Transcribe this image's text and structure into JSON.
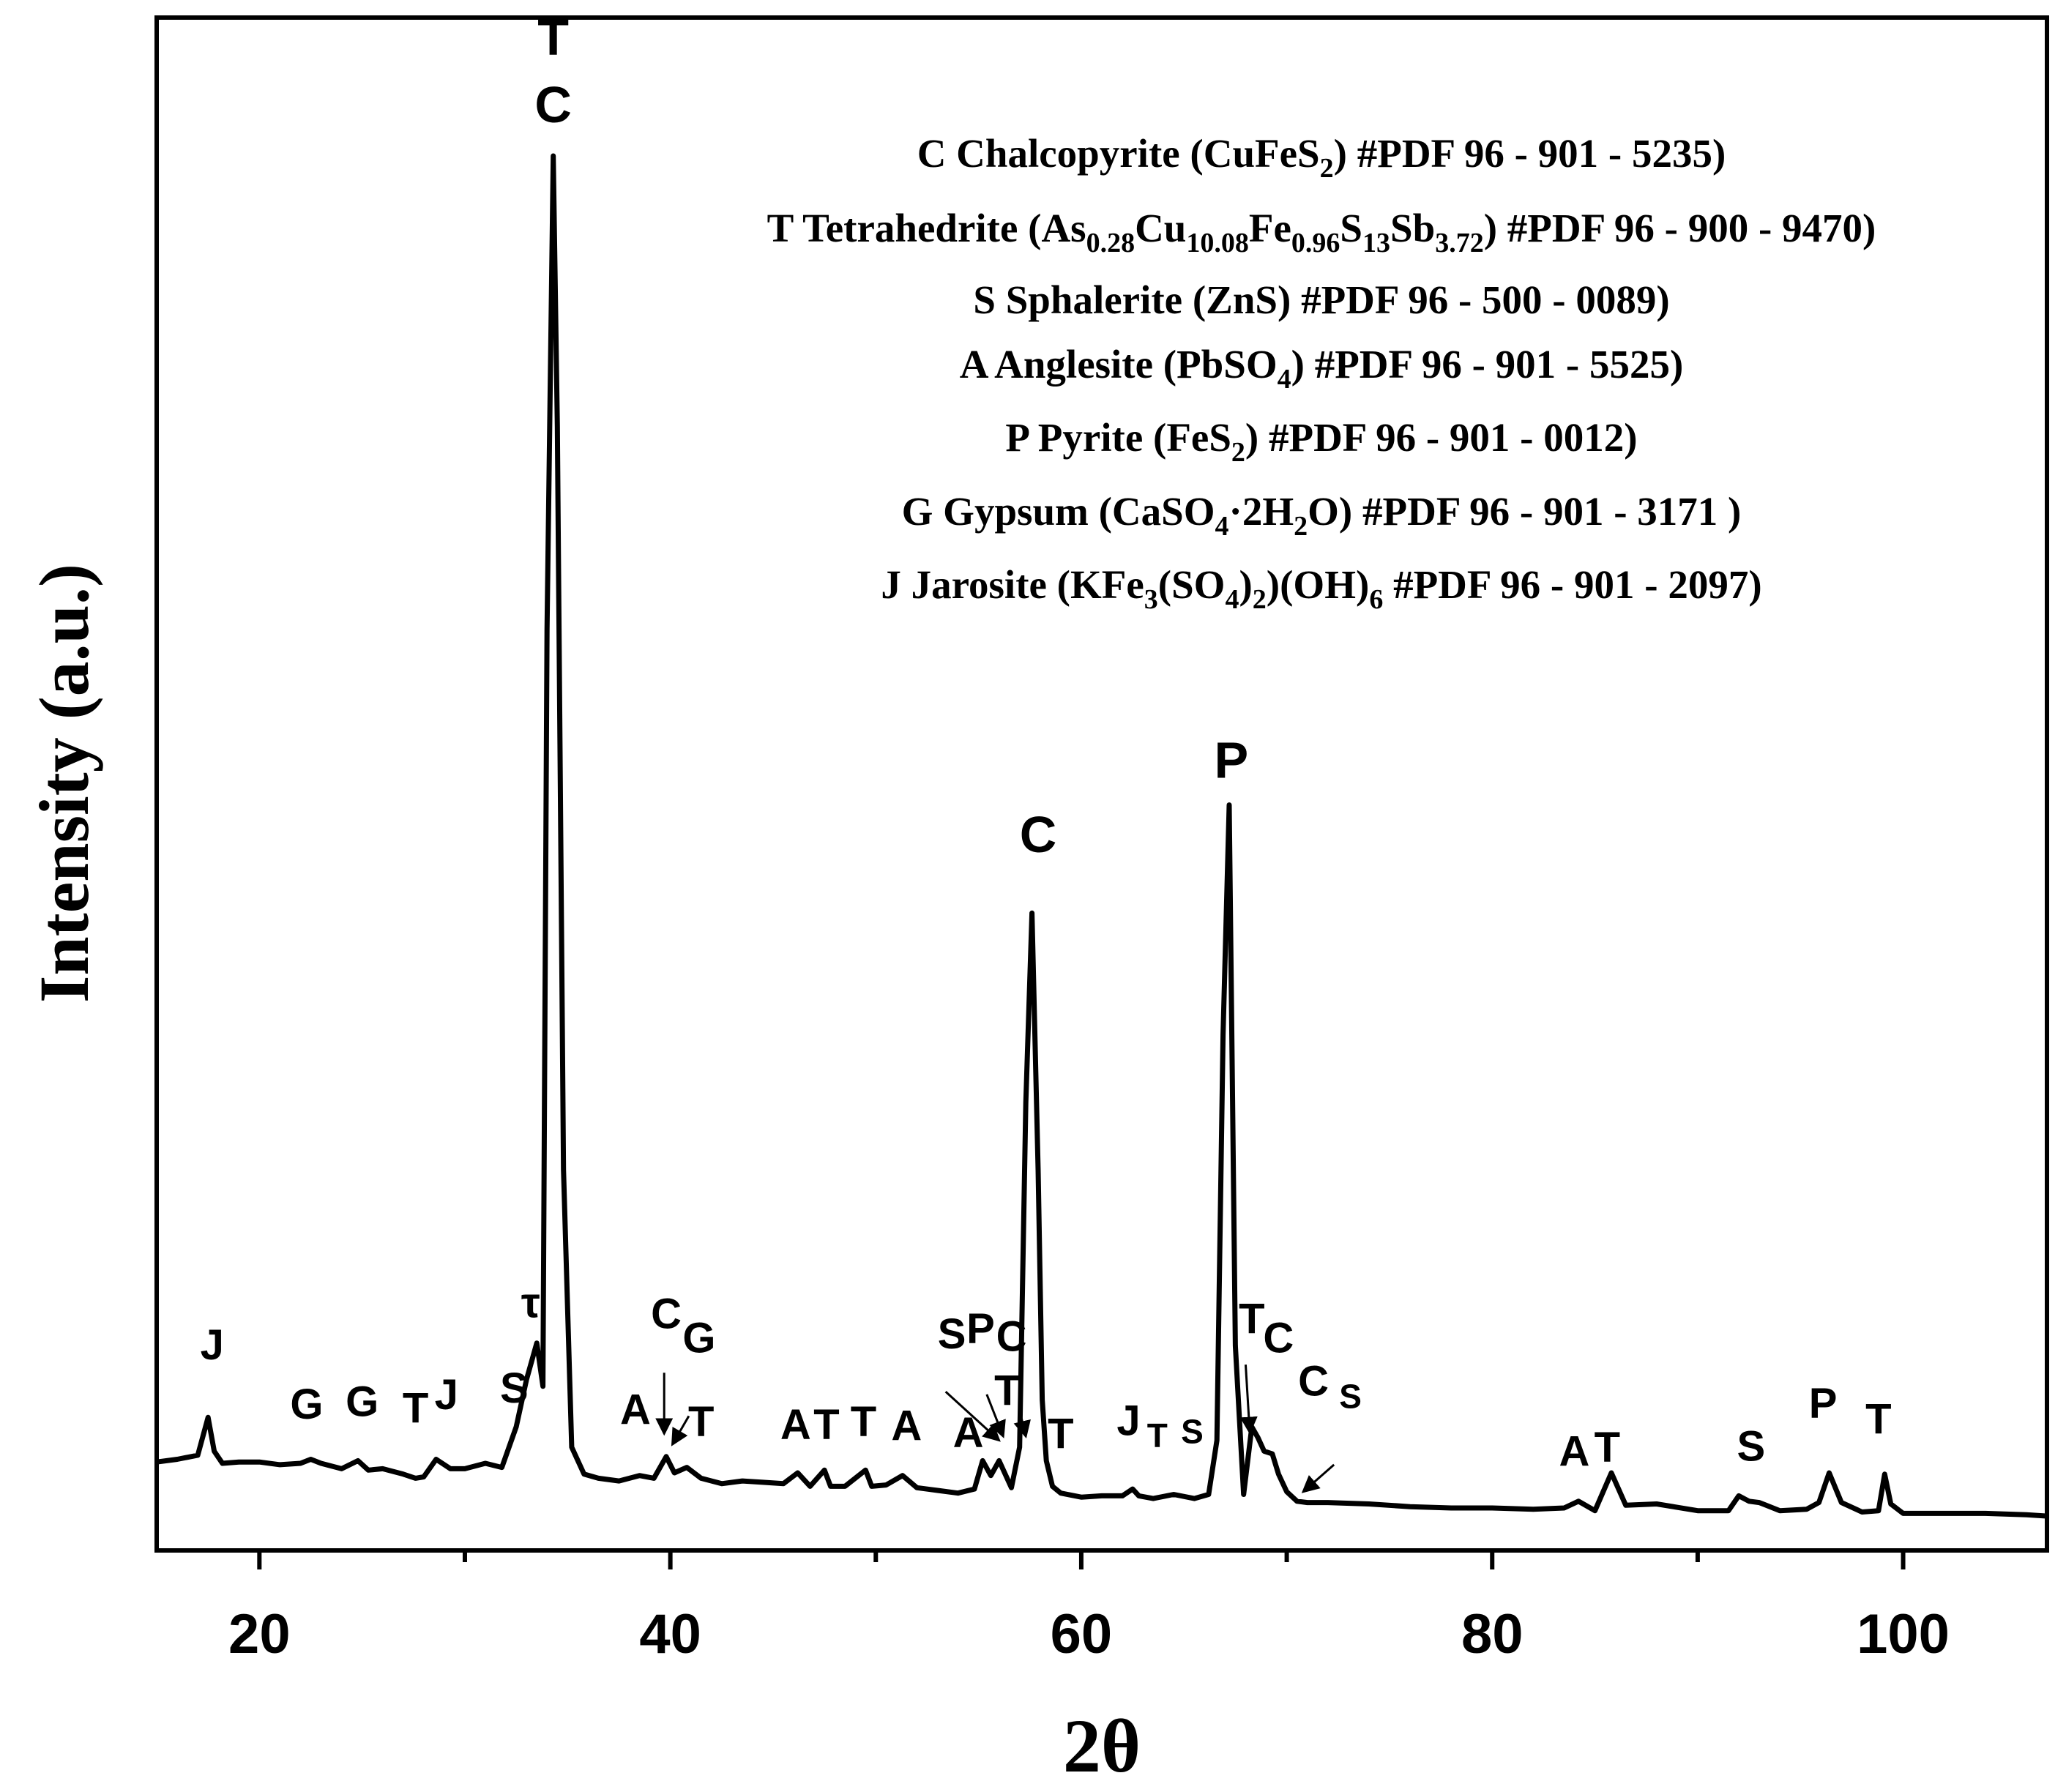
{
  "chart_data": {
    "type": "line",
    "xlabel": "2θ",
    "ylabel": "Intensity (a.u.)",
    "xlim": [
      15,
      107
    ],
    "ylim": [
      0,
      100
    ],
    "x_ticks": [
      20,
      40,
      60,
      80,
      100
    ],
    "x_tick_labels": [
      "20",
      "40",
      "60",
      "80",
      "100"
    ],
    "grid": false,
    "line_color": "#000000",
    "series": [
      {
        "x": [
          15,
          16,
          17,
          17.5,
          17.8,
          18.2,
          19,
          20,
          21,
          22,
          22.5,
          23,
          24,
          24.8,
          25.3,
          26,
          27,
          27.6,
          28,
          28.6,
          29.3,
          30,
          31,
          31.8,
          32.5,
          33,
          33.5,
          33.8,
          34.0,
          34.3,
          34.5,
          34.8,
          35.2,
          35.8,
          36.5,
          37.5,
          38.5,
          39.2,
          39.8,
          40.2,
          40.8,
          41.5,
          42.5,
          43.5,
          44.5,
          45.5,
          46.2,
          46.8,
          47.5,
          47.8,
          48.5,
          49.5,
          49.8,
          50.5,
          51.3,
          52,
          53,
          54,
          54.8,
          55.2,
          55.6,
          56,
          56.6,
          57,
          57.3,
          57.6,
          57.9,
          58.1,
          58.3,
          58.6,
          59,
          60,
          61,
          62,
          62.5,
          62.8,
          63.5,
          64.5,
          65.5,
          66.2,
          66.6,
          66.9,
          67.2,
          67.5,
          67.9,
          68.3,
          68.6,
          68.9,
          69.3,
          69.6,
          70,
          70.5,
          71,
          72,
          74,
          76,
          78,
          80,
          82,
          83.5,
          84.2,
          85,
          85.4,
          85.8,
          86.5,
          88,
          90,
          91.5,
          92,
          92.5,
          93,
          94,
          95.3,
          95.9,
          96.4,
          97,
          98,
          98.8,
          99.1,
          99.4,
          100,
          102,
          104,
          106,
          107
        ],
        "y": [
          3.4,
          3.6,
          3.9,
          6.7,
          4.2,
          3.3,
          3.4,
          3.4,
          3.2,
          3.3,
          3.6,
          3.3,
          2.9,
          3.5,
          2.8,
          2.9,
          2.5,
          2.2,
          2.3,
          3.6,
          2.9,
          2.9,
          3.3,
          3.0,
          6.0,
          9.5,
          12.2,
          9.0,
          65,
          100,
          80,
          25,
          4.5,
          2.5,
          2.2,
          2.0,
          2.4,
          2.2,
          3.8,
          2.6,
          3.0,
          2.2,
          1.8,
          2.0,
          1.9,
          1.8,
          2.6,
          1.6,
          2.8,
          1.6,
          1.6,
          2.8,
          1.6,
          1.7,
          2.4,
          1.5,
          1.3,
          1.1,
          1.4,
          3.5,
          2.4,
          3.5,
          1.5,
          4.5,
          30,
          44,
          25,
          8,
          3.5,
          1.6,
          1.1,
          0.8,
          0.9,
          0.9,
          1.4,
          0.9,
          0.7,
          1.0,
          0.7,
          1.0,
          5,
          35,
          52,
          12,
          1.0,
          6.0,
          5.2,
          4.2,
          4.0,
          2.5,
          1.2,
          0.5,
          0.4,
          0.4,
          0.3,
          0.1,
          0.0,
          0.0,
          -0.1,
          0.0,
          0.5,
          -0.2,
          1.2,
          2.6,
          0.2,
          0.3,
          -0.2,
          -0.2,
          0.9,
          0.5,
          0.4,
          -0.2,
          -0.1,
          0.4,
          2.6,
          0.4,
          -0.3,
          -0.2,
          2.5,
          0.3,
          -0.4,
          -0.4,
          -0.4,
          -0.5,
          -0.6
        ]
      }
    ],
    "peak_labels": [
      {
        "text": "T",
        "x": 34.3,
        "y": 107.5,
        "size": "large"
      },
      {
        "text": "C",
        "x": 34.3,
        "y": 102.5,
        "size": "large"
      },
      {
        "text": "C",
        "x": 57.9,
        "y": 48.5,
        "size": "large"
      },
      {
        "text": "P",
        "x": 67.3,
        "y": 54,
        "size": "large"
      },
      {
        "text": "J",
        "x": 17.7,
        "y": 11,
        "size": "medium"
      },
      {
        "text": "G",
        "x": 22.3,
        "y": 6.6,
        "size": "medium"
      },
      {
        "text": "G",
        "x": 25,
        "y": 6.8,
        "size": "medium"
      },
      {
        "text": "T",
        "x": 27.6,
        "y": 6.3,
        "size": "medium"
      },
      {
        "text": "J",
        "x": 29.1,
        "y": 7.3,
        "size": "medium"
      },
      {
        "text": "S",
        "x": 32.4,
        "y": 7.8,
        "size": "medium"
      },
      {
        "text": "τ",
        "x": 33.2,
        "y": 14.1,
        "size": "medium"
      },
      {
        "text": "A",
        "x": 38.3,
        "y": 6.2,
        "size": "medium"
      },
      {
        "text": "C",
        "x": 39.8,
        "y": 13.3,
        "size": "medium"
      },
      {
        "text": "G",
        "x": 41.4,
        "y": 11.5,
        "size": "medium"
      },
      {
        "text": "T",
        "x": 41.5,
        "y": 5.3,
        "size": "medium"
      },
      {
        "text": "A",
        "x": 46.1,
        "y": 5.1,
        "size": "medium"
      },
      {
        "text": "T",
        "x": 47.6,
        "y": 5.1,
        "size": "medium"
      },
      {
        "text": "T",
        "x": 49.4,
        "y": 5.3,
        "size": "medium"
      },
      {
        "text": "A",
        "x": 51.5,
        "y": 5.0,
        "size": "medium"
      },
      {
        "text": "A",
        "x": 54.5,
        "y": 4.5,
        "size": "medium"
      },
      {
        "text": "S",
        "x": 53.7,
        "y": 11.8,
        "size": "medium"
      },
      {
        "text": "P",
        "x": 55.1,
        "y": 12.2,
        "size": "medium"
      },
      {
        "text": "C",
        "x": 56.6,
        "y": 11.6,
        "size": "medium"
      },
      {
        "text": "T",
        "x": 56.4,
        "y": 7.6,
        "size": "medium"
      },
      {
        "text": "T",
        "x": 59,
        "y": 4.4,
        "size": "medium"
      },
      {
        "text": "J",
        "x": 62.3,
        "y": 5.4,
        "size": "medium"
      },
      {
        "text": "T",
        "x": 63.7,
        "y": 4.5,
        "size": "small"
      },
      {
        "text": "S",
        "x": 65.4,
        "y": 4.8,
        "size": "small"
      },
      {
        "text": "T",
        "x": 68.3,
        "y": 12.9,
        "size": "medium"
      },
      {
        "text": "C",
        "x": 69.6,
        "y": 11.5,
        "size": "medium"
      },
      {
        "text": "C",
        "x": 71.3,
        "y": 8.3,
        "size": "medium"
      },
      {
        "text": "S",
        "x": 73.1,
        "y": 7.4,
        "size": "small"
      },
      {
        "text": "A",
        "x": 84,
        "y": 3.1,
        "size": "medium"
      },
      {
        "text": "T",
        "x": 85.6,
        "y": 3.4,
        "size": "medium"
      },
      {
        "text": "S",
        "x": 92.6,
        "y": 3.5,
        "size": "medium"
      },
      {
        "text": "P",
        "x": 96.1,
        "y": 6.7,
        "size": "medium"
      },
      {
        "text": "T",
        "x": 98.8,
        "y": 5.5,
        "size": "medium"
      }
    ],
    "arrows": [
      {
        "from": [
          39.7,
          10.0
        ],
        "to": [
          39.7,
          5.5
        ]
      },
      {
        "from": [
          40.9,
          6.8
        ],
        "to": [
          40.1,
          4.7
        ]
      },
      {
        "from": [
          53.4,
          8.6
        ],
        "to": [
          56.0,
          5.0
        ]
      },
      {
        "from": [
          55.4,
          8.4
        ],
        "to": [
          56.2,
          5.3
        ]
      },
      {
        "from": [
          57.0,
          7.2
        ],
        "to": [
          57.3,
          5.3
        ]
      },
      {
        "from": [
          68.0,
          10.6
        ],
        "to": [
          68.2,
          5.6
        ]
      },
      {
        "from": [
          72.3,
          3.2
        ],
        "to": [
          70.8,
          1.2
        ]
      }
    ],
    "legend": {
      "placement": "top-right",
      "entries": [
        {
          "label": "C Chalcopyrite (CuFeS",
          "sub1": "2",
          "tail": ") #PDF 96 - 901 - 5235)"
        },
        {
          "label": "T Tetrahedrite (As",
          "sub1": "0.28",
          "mid1": "Cu",
          "sub2": "10.08",
          "mid2": "Fe",
          "sub3": "0.96",
          "mid3": "S",
          "sub4": "13",
          "mid4": "Sb",
          "sub5": "3.72",
          "tail": ") #PDF 96 - 900 - 9470)"
        },
        {
          "label": "S Sphalerite (ZnS) #PDF 96 - 500 - 0089)"
        },
        {
          "label": "A Anglesite (PbSO",
          "sub1": "4",
          "tail": ") #PDF 96 - 901 - 5525)"
        },
        {
          "label": "P Pyrite (FeS",
          "sub1": "2",
          "tail": ") #PDF 96 - 901 - 0012)"
        },
        {
          "label": "G Gypsum (CaSO",
          "sub1": "4",
          "mid1": "·2H",
          "sub2": "2",
          "tail": "O) #PDF 96 - 901 - 3171 )"
        },
        {
          "label": "J Jarosite (KFe",
          "sub1": "3",
          "mid1": "(SO",
          "sub2": "4",
          "mid2": ")",
          "sub3": "2",
          "mid3": ")(OH)",
          "sub4": "6",
          "tail": " #PDF 96 - 901 - 2097)"
        }
      ]
    }
  }
}
